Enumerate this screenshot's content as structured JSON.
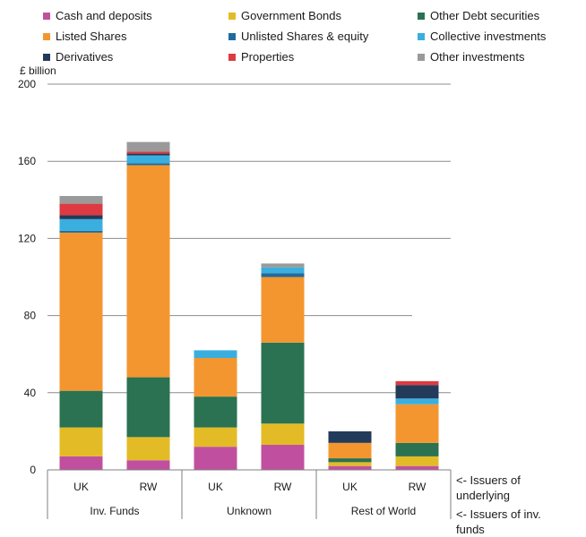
{
  "chart_data": {
    "type": "bar",
    "stacked": true,
    "ylabel": "£ billion",
    "ylim": [
      0,
      200
    ],
    "yticks": [
      0,
      40,
      80,
      120,
      160,
      200
    ],
    "grid": true,
    "legend_position": "top",
    "groups": [
      {
        "label": "Inv. Funds",
        "categories": [
          "UK",
          "RW"
        ]
      },
      {
        "label": "Unknown",
        "categories": [
          "UK",
          "RW"
        ]
      },
      {
        "label": "Rest of World",
        "categories": [
          "UK",
          "RW"
        ]
      }
    ],
    "categories": [
      "UK",
      "RW",
      "UK",
      "RW",
      "UK",
      "RW"
    ],
    "series": [
      {
        "name": "Cash and deposits",
        "color": "#c0509f",
        "values": [
          7,
          5,
          12,
          13,
          2,
          2
        ]
      },
      {
        "name": "Government Bonds",
        "color": "#e3bb26",
        "values": [
          15,
          12,
          10,
          11,
          2,
          5
        ]
      },
      {
        "name": "Other Debt securities",
        "color": "#2a7251",
        "values": [
          19,
          31,
          16,
          42,
          2,
          7
        ]
      },
      {
        "name": "Listed Shares",
        "color": "#f4962f",
        "values": [
          82,
          110,
          20,
          34,
          8,
          20
        ]
      },
      {
        "name": "Unlisted Shares & equity",
        "color": "#1f6b9e",
        "values": [
          1,
          1,
          0,
          2,
          0,
          0
        ]
      },
      {
        "name": "Collective investments",
        "color": "#3aafdf",
        "values": [
          6,
          4,
          4,
          3,
          0,
          3
        ]
      },
      {
        "name": "Derivatives",
        "color": "#233b5a",
        "values": [
          2,
          1,
          0,
          0,
          6,
          7
        ]
      },
      {
        "name": "Properties",
        "color": "#dd3a41",
        "values": [
          6,
          1,
          0,
          0,
          0,
          2
        ]
      },
      {
        "name": "Other investments",
        "color": "#9a9a9a",
        "values": [
          4,
          5,
          0,
          2,
          0,
          0
        ]
      }
    ]
  },
  "annotations": {
    "underlying": "<- Issuers of underlying",
    "inv_funds": "<- Issuers of inv. funds"
  }
}
